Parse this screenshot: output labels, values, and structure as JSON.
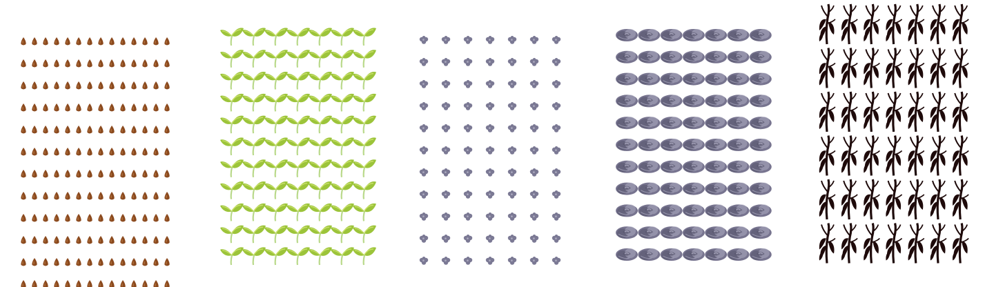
{
  "panels": [
    {
      "id": "seeds",
      "icon": "seed-icon",
      "rows": 12,
      "cols": 14,
      "color": "#8b4a1e",
      "highlight": "#b5733f"
    },
    {
      "id": "sprouts",
      "icon": "sprout-icon",
      "rows": 11,
      "cols": 7,
      "color": "#9cc43a",
      "highlight": "#c9e06a",
      "stem": "#b9d98a"
    },
    {
      "id": "small-flowers",
      "icon": "small-flower-icon",
      "rows": 11,
      "cols": 7,
      "color": "#7b7994",
      "highlight": "#a9a7bd"
    },
    {
      "id": "roses",
      "icon": "rose-icon",
      "rows": 11,
      "cols": 7,
      "color": "#77748f",
      "highlight": "#a8a6bd",
      "shadow": "#55536b"
    },
    {
      "id": "wilted-plants",
      "icon": "wilted-plant-icon",
      "rows": 6,
      "cols": 7,
      "color": "#1e0a0a"
    }
  ]
}
